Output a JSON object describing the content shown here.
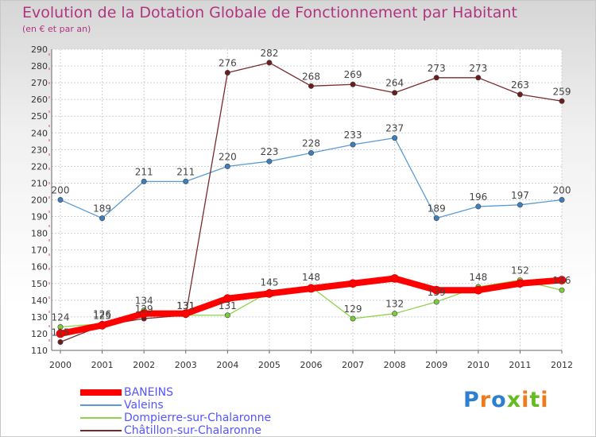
{
  "chart_data": {
    "type": "line",
    "title": "Evolution de la Dotation Globale de Fonctionnement par Habitant",
    "subtitle": "(en € et par an)",
    "xlabel": "",
    "ylabel": "",
    "ylim": [
      110,
      290
    ],
    "ystep": 10,
    "grid": true,
    "categories": [
      "2000",
      "2001",
      "2002",
      "2003",
      "2004",
      "2005",
      "2006",
      "2007",
      "2008",
      "2009",
      "2010",
      "2011",
      "2012"
    ],
    "series": [
      {
        "name": "BANEINS",
        "color": "#ff0000",
        "point_color": "#ff0000",
        "values": [
          120,
          125,
          132,
          132,
          141,
          144,
          147,
          150,
          153,
          146,
          146,
          150,
          152
        ],
        "show_labels": false
      },
      {
        "name": "Valeins",
        "color": "#5b9bd5",
        "point_color": "#3d7ebf",
        "values": [
          200,
          189,
          211,
          211,
          220,
          223,
          228,
          233,
          237,
          189,
          196,
          197,
          200
        ],
        "show_labels": true
      },
      {
        "name": "Dompierre-sur-Chalaronne",
        "color": "#8ed44a",
        "point_color": "#7acc3a",
        "values": [
          124,
          126,
          134,
          131,
          131,
          145,
          148,
          129,
          132,
          139,
          148,
          152,
          146
        ],
        "show_labels": true
      },
      {
        "name": "Châtillon-sur-Chalaronne",
        "color": "#7a2a2a",
        "point_color": "#6b1c1c",
        "values": [
          115,
          125,
          129,
          131,
          276,
          282,
          268,
          269,
          264,
          273,
          273,
          263,
          259
        ],
        "show_labels": true
      }
    ]
  },
  "logo": {
    "letters": [
      "P",
      "r",
      "o",
      "x",
      "i",
      "t",
      "i"
    ],
    "colors": [
      "#2f7fd0",
      "#f07a1a",
      "#2f7fd0",
      "#66bb22",
      "#f07a1a",
      "#66bb22",
      "#f07a1a"
    ]
  }
}
